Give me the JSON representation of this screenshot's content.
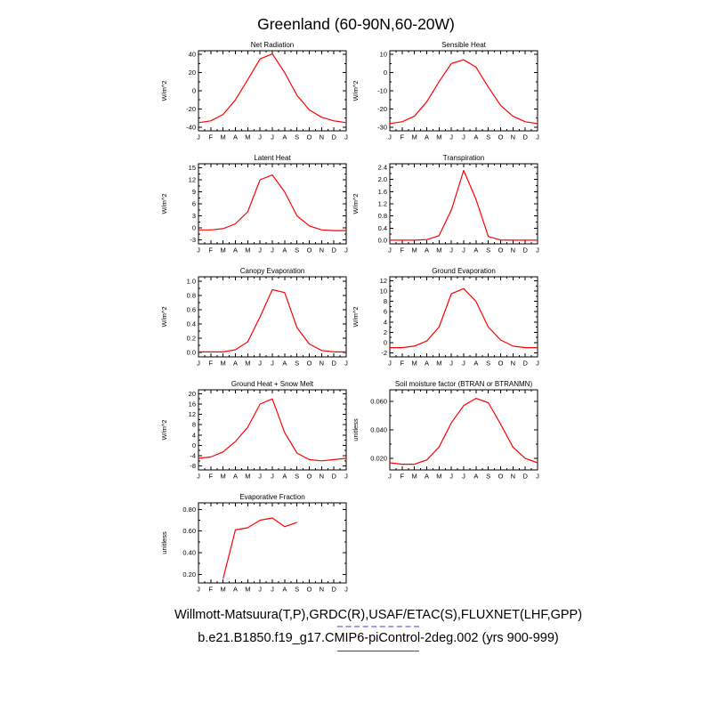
{
  "page_title": "Greenland (60-90N,60-20W)",
  "style": {
    "line_color": "#ff0000",
    "obs_line_color": "#9b9bff",
    "frame_color": "#000000"
  },
  "footer": {
    "obs_label": "Willmott-Matsuura(T,P),GRDC(R),USAF/ETAC(S),FLUXNET(LHF,GPP)",
    "model_label": "b.e21.B1850.f19_g17.CMIP6-piControl-2deg.002 (yrs 900-999)"
  },
  "chart_data": [
    {
      "type": "line",
      "title": "Net Radiation",
      "ylabel": "W/m^2",
      "x_ticklabels": [
        "J",
        "F",
        "M",
        "A",
        "M",
        "J",
        "J",
        "A",
        "S",
        "O",
        "N",
        "D",
        "J"
      ],
      "ylim": [
        -44,
        44
      ],
      "yticks": [
        -40,
        -20,
        0,
        20,
        40
      ],
      "ytick_labels": [
        "-40",
        "-20",
        "0",
        "20",
        "40"
      ],
      "values": [
        -35,
        -33,
        -26,
        -10,
        12,
        35,
        40.5,
        20,
        -5,
        -21,
        -29,
        -33,
        -35
      ]
    },
    {
      "type": "line",
      "title": "Sensible Heat",
      "ylabel": "W/m^2",
      "x_ticklabels": [
        "J",
        "F",
        "M",
        "A",
        "M",
        "J",
        "J",
        "A",
        "S",
        "O",
        "N",
        "D",
        "J"
      ],
      "ylim": [
        -32,
        12
      ],
      "yticks": [
        -30,
        -20,
        -10,
        0,
        10
      ],
      "ytick_labels": [
        "-30",
        "-20",
        "-10",
        "0",
        "10"
      ],
      "values": [
        -28,
        -27,
        -24,
        -16,
        -5,
        5,
        7,
        3,
        -8,
        -18,
        -24,
        -27,
        -28
      ]
    },
    {
      "type": "line",
      "title": "Latent Heat",
      "ylabel": "W/m^2",
      "x_ticklabels": [
        "J",
        "F",
        "M",
        "A",
        "M",
        "J",
        "J",
        "A",
        "S",
        "O",
        "N",
        "D",
        "J"
      ],
      "ylim": [
        -4,
        16
      ],
      "yticks": [
        -3,
        0,
        3,
        6,
        9,
        12,
        15
      ],
      "ytick_labels": [
        "-3",
        "0",
        "3",
        "6",
        "9",
        "12",
        "15"
      ],
      "values": [
        -0.5,
        -0.5,
        -0.2,
        1.0,
        4.0,
        12.0,
        13.2,
        9.0,
        3.0,
        0.5,
        -0.5,
        -0.7,
        -0.7
      ]
    },
    {
      "type": "line",
      "title": "Transpiration",
      "ylabel": "W/m^2",
      "x_ticklabels": [
        "J",
        "F",
        "M",
        "A",
        "M",
        "J",
        "J",
        "A",
        "S",
        "O",
        "N",
        "D",
        "J"
      ],
      "ylim": [
        -0.12,
        2.52
      ],
      "yticks": [
        0.0,
        0.4,
        0.8,
        1.2,
        1.6,
        2.0,
        2.4
      ],
      "ytick_labels": [
        "0.0",
        "0.4",
        "0.8",
        "1.2",
        "1.6",
        "2.0",
        "2.4"
      ],
      "values": [
        0.0,
        0.0,
        0.0,
        0.02,
        0.15,
        1.0,
        2.3,
        1.35,
        0.12,
        0.01,
        0.0,
        0.0,
        0.0
      ]
    },
    {
      "type": "line",
      "title": "Canopy Evaporation",
      "ylabel": "W/m^2",
      "x_ticklabels": [
        "J",
        "F",
        "M",
        "A",
        "M",
        "J",
        "J",
        "A",
        "S",
        "O",
        "N",
        "D",
        "J"
      ],
      "ylim": [
        -0.06,
        1.06
      ],
      "yticks": [
        0.0,
        0.2,
        0.4,
        0.6,
        0.8,
        1.0
      ],
      "ytick_labels": [
        "0.0",
        "0.2",
        "0.4",
        "0.6",
        "0.8",
        "1.0"
      ],
      "values": [
        0.01,
        0.01,
        0.01,
        0.04,
        0.15,
        0.5,
        0.88,
        0.84,
        0.35,
        0.12,
        0.03,
        0.01,
        0.01
      ]
    },
    {
      "type": "line",
      "title": "Ground Evaporation",
      "ylabel": "W/m^2",
      "x_ticklabels": [
        "J",
        "F",
        "M",
        "A",
        "M",
        "J",
        "J",
        "A",
        "S",
        "O",
        "N",
        "D",
        "J"
      ],
      "ylim": [
        -2.8,
        12.8
      ],
      "yticks": [
        -2,
        0,
        2,
        4,
        6,
        8,
        10,
        12
      ],
      "ytick_labels": [
        "-2",
        "0",
        "2",
        "4",
        "6",
        "8",
        "10",
        "12"
      ],
      "values": [
        -1.0,
        -1.0,
        -0.7,
        0.3,
        3.0,
        9.5,
        10.5,
        8.0,
        3.0,
        0.5,
        -0.7,
        -1.0,
        -1.0
      ]
    },
    {
      "type": "line",
      "title": "Ground Heat + Snow Melt",
      "ylabel": "W/m^2",
      "x_ticklabels": [
        "J",
        "F",
        "M",
        "A",
        "M",
        "J",
        "J",
        "A",
        "S",
        "O",
        "N",
        "D",
        "J"
      ],
      "ylim": [
        -9.5,
        21.5
      ],
      "yticks": [
        -8,
        -4,
        0,
        4,
        8,
        12,
        16,
        20
      ],
      "ytick_labels": [
        "-8",
        "-4",
        "0",
        "4",
        "8",
        "12",
        "16",
        "20"
      ],
      "values": [
        -5,
        -4.5,
        -2.5,
        1.5,
        7,
        16,
        18,
        5,
        -3,
        -5.5,
        -6,
        -5.5,
        -5
      ]
    },
    {
      "type": "line",
      "title": "Soil moisture factor (BTRAN or BTRANMN)",
      "ylabel": "unitless",
      "x_ticklabels": [
        "J",
        "F",
        "M",
        "A",
        "M",
        "J",
        "J",
        "A",
        "S",
        "O",
        "N",
        "D",
        "J"
      ],
      "ylim": [
        0.012,
        0.068
      ],
      "yticks": [
        0.02,
        0.04,
        0.06
      ],
      "ytick_labels": [
        "0.020",
        "0.040",
        "0.060"
      ],
      "values": [
        0.017,
        0.016,
        0.016,
        0.019,
        0.028,
        0.045,
        0.057,
        0.062,
        0.059,
        0.044,
        0.028,
        0.02,
        0.017
      ]
    },
    {
      "type": "line",
      "title": "Evaporative Fraction",
      "ylabel": "unitless",
      "x_ticklabels": [
        "J",
        "F",
        "M",
        "A",
        "M",
        "J",
        "J",
        "A",
        "S",
        "O",
        "N",
        "D",
        "J"
      ],
      "ylim": [
        0.12,
        0.86
      ],
      "yticks": [
        0.2,
        0.4,
        0.6,
        0.8
      ],
      "ytick_labels": [
        "0.20",
        "0.40",
        "0.60",
        "0.80"
      ],
      "values": [
        null,
        null,
        0.16,
        0.61,
        0.63,
        0.7,
        0.72,
        0.64,
        0.68,
        null,
        null,
        null,
        null
      ]
    }
  ]
}
